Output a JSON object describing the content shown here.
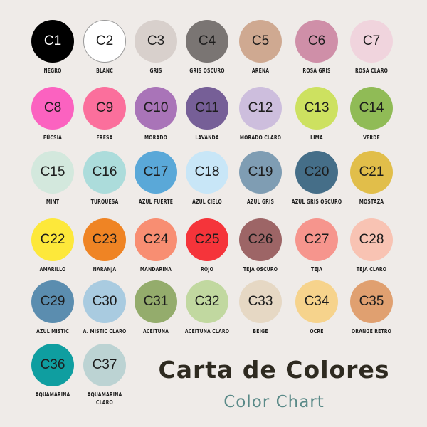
{
  "title": "Carta de Colores",
  "subtitle": "Color Chart",
  "swatches": [
    {
      "code": "C1",
      "name": "NEGRO",
      "color": "#000000",
      "text": "#ffffff"
    },
    {
      "code": "C2",
      "name": "BLANC",
      "color": "#ffffff",
      "border": "#9a9a9a"
    },
    {
      "code": "C3",
      "name": "GRIS",
      "color": "#d8d0cc"
    },
    {
      "code": "C4",
      "name": "GRIS OSCURO",
      "color": "#7a7573"
    },
    {
      "code": "C5",
      "name": "ARENA",
      "color": "#cfa991"
    },
    {
      "code": "C6",
      "name": "ROSA GRIS",
      "color": "#cf8fa8"
    },
    {
      "code": "C7",
      "name": "ROSA CLARO",
      "color": "#f0d4dd"
    },
    {
      "code": "C8",
      "name": "FÚCSIA",
      "color": "#fb62c0"
    },
    {
      "code": "C9",
      "name": "FRESA",
      "color": "#fb6f9c"
    },
    {
      "code": "C10",
      "name": "MORADO",
      "color": "#a974b8"
    },
    {
      "code": "C11",
      "name": "LAVANDA",
      "color": "#765f97"
    },
    {
      "code": "C12",
      "name": "MORADO CLARO",
      "color": "#cdbedd"
    },
    {
      "code": "C13",
      "name": "LIMA",
      "color": "#cde160"
    },
    {
      "code": "C14",
      "name": "VERDE",
      "color": "#90bb56"
    },
    {
      "code": "C15",
      "name": "MINT",
      "color": "#d3e8dd"
    },
    {
      "code": "C16",
      "name": "TURQUESA",
      "color": "#acdcdb"
    },
    {
      "code": "C17",
      "name": "AZUL FUERTE",
      "color": "#5aa8d8"
    },
    {
      "code": "C18",
      "name": "AZUL CIELO",
      "color": "#c8e6f7"
    },
    {
      "code": "C19",
      "name": "AZUL GRIS",
      "color": "#7f9db3"
    },
    {
      "code": "C20",
      "name": "AZUL GRIS OSCURO",
      "color": "#456e88"
    },
    {
      "code": "C21",
      "name": "MOSTAZA",
      "color": "#e1be4a"
    },
    {
      "code": "C22",
      "name": "AMARILLO",
      "color": "#fde83a"
    },
    {
      "code": "C23",
      "name": "NARANJA",
      "color": "#ef8424"
    },
    {
      "code": "C24",
      "name": "MANDARINA",
      "color": "#f88e72"
    },
    {
      "code": "C25",
      "name": "ROJO",
      "color": "#f5343a"
    },
    {
      "code": "C26",
      "name": "TEJA OSCURO",
      "color": "#9d6566"
    },
    {
      "code": "C27",
      "name": "TEJA",
      "color": "#f6958d"
    },
    {
      "code": "C28",
      "name": "TEJA CLARO",
      "color": "#f8c3b3"
    },
    {
      "code": "C29",
      "name": "AZUL MISTIC",
      "color": "#5b8daf"
    },
    {
      "code": "C30",
      "name": "A. MISTIC CLARO",
      "color": "#a9cbe0"
    },
    {
      "code": "C31",
      "name": "ACEITUNA",
      "color": "#94ac6c"
    },
    {
      "code": "C32",
      "name": "ACEITUNA CLARO",
      "color": "#c1d8a0"
    },
    {
      "code": "C33",
      "name": "BEIGE",
      "color": "#e6d8c4"
    },
    {
      "code": "C34",
      "name": "OCRE",
      "color": "#f6d38c"
    },
    {
      "code": "C35",
      "name": "ORANGE RETRO",
      "color": "#e0a070"
    },
    {
      "code": "C36",
      "name": "AQUAMARINA",
      "color": "#0f9ea0"
    },
    {
      "code": "C37",
      "name": "AQUAMARINA CLARO",
      "color": "#bcd3d3"
    }
  ]
}
